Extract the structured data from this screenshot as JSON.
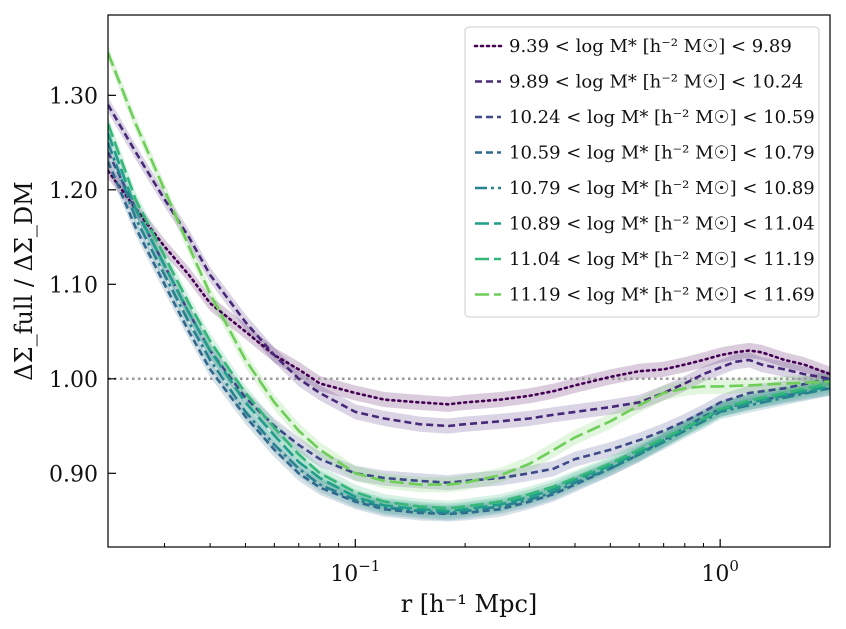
{
  "chart_data": {
    "type": "line",
    "xscale": "log",
    "xlim": [
      0.021,
      2.0
    ],
    "ylim": [
      0.822,
      1.385
    ],
    "xlabel": "r [h⁻¹ Mpc]",
    "ylabel": "ΔΣ_full / ΔΣ_DM",
    "xticks": [
      {
        "value": 0.1,
        "base": "10",
        "exp": "−1"
      },
      {
        "value": 1.0,
        "base": "10",
        "exp": "0"
      }
    ],
    "yticks": [
      {
        "value": 0.9,
        "label": "0.90"
      },
      {
        "value": 1.0,
        "label": "1.00"
      },
      {
        "value": 1.1,
        "label": "1.10"
      },
      {
        "value": 1.2,
        "label": "1.20"
      },
      {
        "value": 1.3,
        "label": "1.30"
      }
    ],
    "reference_line": {
      "y": 1.0,
      "color": "#999999",
      "style": "dotted"
    },
    "legend_position": "top-right",
    "series": [
      {
        "name": "9.39 < log M* [h⁻² M☉] < 9.89",
        "color": "#440154",
        "dash": "dotted",
        "x": [
          0.021,
          0.025,
          0.03,
          0.035,
          0.04,
          0.05,
          0.06,
          0.07,
          0.08,
          0.1,
          0.12,
          0.15,
          0.18,
          0.2,
          0.25,
          0.3,
          0.35,
          0.4,
          0.5,
          0.6,
          0.7,
          0.8,
          0.9,
          1.0,
          1.1,
          1.2,
          1.3,
          1.5,
          1.7,
          2.0
        ],
        "y": [
          1.22,
          1.18,
          1.14,
          1.11,
          1.08,
          1.05,
          1.025,
          1.01,
          0.995,
          0.985,
          0.978,
          0.975,
          0.973,
          0.975,
          0.978,
          0.982,
          0.987,
          0.993,
          1.002,
          1.008,
          1.01,
          1.015,
          1.02,
          1.025,
          1.028,
          1.03,
          1.028,
          1.02,
          1.015,
          1.005
        ]
      },
      {
        "name": "9.89 < log M* [h⁻² M☉] < 10.24",
        "color": "#482878",
        "dash": "dashed",
        "x": [
          0.021,
          0.025,
          0.03,
          0.035,
          0.04,
          0.05,
          0.06,
          0.07,
          0.08,
          0.1,
          0.12,
          0.15,
          0.18,
          0.2,
          0.25,
          0.3,
          0.35,
          0.4,
          0.5,
          0.6,
          0.7,
          0.8,
          0.9,
          1.0,
          1.1,
          1.2,
          1.3,
          1.5,
          1.7,
          2.0
        ],
        "y": [
          1.29,
          1.24,
          1.19,
          1.15,
          1.11,
          1.06,
          1.025,
          1.0,
          0.985,
          0.965,
          0.958,
          0.952,
          0.95,
          0.952,
          0.955,
          0.958,
          0.962,
          0.965,
          0.97,
          0.975,
          0.985,
          0.995,
          1.005,
          1.012,
          1.018,
          1.02,
          1.015,
          1.01,
          1.005,
          1.0
        ]
      },
      {
        "name": "10.24 < log M* [h⁻² M☉] < 10.59",
        "color": "#3e4989",
        "dash": "dashed",
        "x": [
          0.021,
          0.025,
          0.03,
          0.035,
          0.04,
          0.05,
          0.06,
          0.07,
          0.08,
          0.1,
          0.12,
          0.15,
          0.18,
          0.2,
          0.25,
          0.3,
          0.35,
          0.4,
          0.5,
          0.6,
          0.7,
          0.8,
          0.9,
          1.0,
          1.2,
          1.5,
          2.0
        ],
        "y": [
          1.24,
          1.18,
          1.12,
          1.07,
          1.03,
          0.98,
          0.95,
          0.93,
          0.915,
          0.9,
          0.895,
          0.892,
          0.89,
          0.892,
          0.895,
          0.9,
          0.905,
          0.915,
          0.925,
          0.935,
          0.945,
          0.955,
          0.965,
          0.975,
          0.985,
          0.99,
          1.0
        ]
      },
      {
        "name": "10.59 < log M* [h⁻² M☉] < 10.79",
        "color": "#31688e",
        "dash": "dashed",
        "x": [
          0.021,
          0.025,
          0.03,
          0.035,
          0.04,
          0.05,
          0.06,
          0.07,
          0.08,
          0.1,
          0.12,
          0.15,
          0.18,
          0.2,
          0.25,
          0.3,
          0.35,
          0.4,
          0.5,
          0.6,
          0.7,
          0.8,
          0.9,
          1.0,
          1.2,
          1.5,
          2.0
        ],
        "y": [
          1.23,
          1.16,
          1.1,
          1.05,
          1.01,
          0.96,
          0.925,
          0.9,
          0.885,
          0.87,
          0.862,
          0.858,
          0.857,
          0.858,
          0.862,
          0.87,
          0.878,
          0.888,
          0.905,
          0.92,
          0.935,
          0.948,
          0.96,
          0.968,
          0.975,
          0.982,
          0.99
        ]
      },
      {
        "name": "10.79 < log M* [h⁻² M☉] < 10.89",
        "color": "#26828e",
        "dash": "dashdot",
        "x": [
          0.021,
          0.025,
          0.03,
          0.035,
          0.04,
          0.05,
          0.06,
          0.07,
          0.08,
          0.1,
          0.12,
          0.15,
          0.18,
          0.2,
          0.25,
          0.3,
          0.35,
          0.4,
          0.5,
          0.6,
          0.7,
          0.8,
          0.9,
          1.0,
          1.2,
          1.5,
          2.0
        ],
        "y": [
          1.25,
          1.17,
          1.11,
          1.06,
          1.02,
          0.965,
          0.93,
          0.905,
          0.888,
          0.872,
          0.864,
          0.86,
          0.858,
          0.86,
          0.865,
          0.872,
          0.88,
          0.89,
          0.905,
          0.92,
          0.933,
          0.945,
          0.955,
          0.965,
          0.972,
          0.98,
          0.99
        ]
      },
      {
        "name": "10.89 < log M* [h⁻² M☉] < 11.04",
        "color": "#1f9e89",
        "dash": "longdash",
        "x": [
          0.021,
          0.025,
          0.03,
          0.035,
          0.04,
          0.05,
          0.06,
          0.07,
          0.08,
          0.1,
          0.12,
          0.15,
          0.18,
          0.2,
          0.25,
          0.3,
          0.35,
          0.4,
          0.5,
          0.6,
          0.7,
          0.8,
          0.9,
          1.0,
          1.2,
          1.5,
          2.0
        ],
        "y": [
          1.26,
          1.18,
          1.12,
          1.07,
          1.03,
          0.975,
          0.94,
          0.912,
          0.895,
          0.875,
          0.866,
          0.862,
          0.86,
          0.862,
          0.867,
          0.875,
          0.883,
          0.893,
          0.908,
          0.922,
          0.935,
          0.947,
          0.957,
          0.967,
          0.975,
          0.983,
          0.992
        ]
      },
      {
        "name": "11.04 < log M* [h⁻² M☉] < 11.19",
        "color": "#35b779",
        "dash": "longdash",
        "x": [
          0.021,
          0.025,
          0.03,
          0.035,
          0.04,
          0.05,
          0.06,
          0.07,
          0.08,
          0.1,
          0.12,
          0.15,
          0.18,
          0.2,
          0.25,
          0.3,
          0.35,
          0.4,
          0.5,
          0.6,
          0.7,
          0.8,
          0.9,
          1.0,
          1.2,
          1.5,
          2.0
        ],
        "y": [
          1.27,
          1.19,
          1.13,
          1.08,
          1.04,
          0.985,
          0.948,
          0.92,
          0.9,
          0.88,
          0.87,
          0.865,
          0.863,
          0.865,
          0.87,
          0.878,
          0.886,
          0.895,
          0.91,
          0.925,
          0.937,
          0.948,
          0.958,
          0.968,
          0.977,
          0.985,
          0.995
        ]
      },
      {
        "name": "11.19 < log M* [h⁻² M☉] < 11.69",
        "color": "#6ece58",
        "dash": "longdash",
        "x": [
          0.021,
          0.025,
          0.03,
          0.035,
          0.04,
          0.05,
          0.06,
          0.07,
          0.08,
          0.1,
          0.12,
          0.15,
          0.18,
          0.2,
          0.25,
          0.3,
          0.35,
          0.4,
          0.5,
          0.6,
          0.7,
          0.8,
          0.9,
          1.0,
          1.2,
          1.5,
          2.0
        ],
        "y": [
          1.345,
          1.27,
          1.2,
          1.14,
          1.09,
          1.02,
          0.975,
          0.945,
          0.925,
          0.9,
          0.892,
          0.888,
          0.888,
          0.89,
          0.898,
          0.91,
          0.925,
          0.938,
          0.955,
          0.972,
          0.985,
          0.99,
          0.992,
          0.992,
          0.993,
          0.995,
          0.997
        ]
      }
    ]
  }
}
